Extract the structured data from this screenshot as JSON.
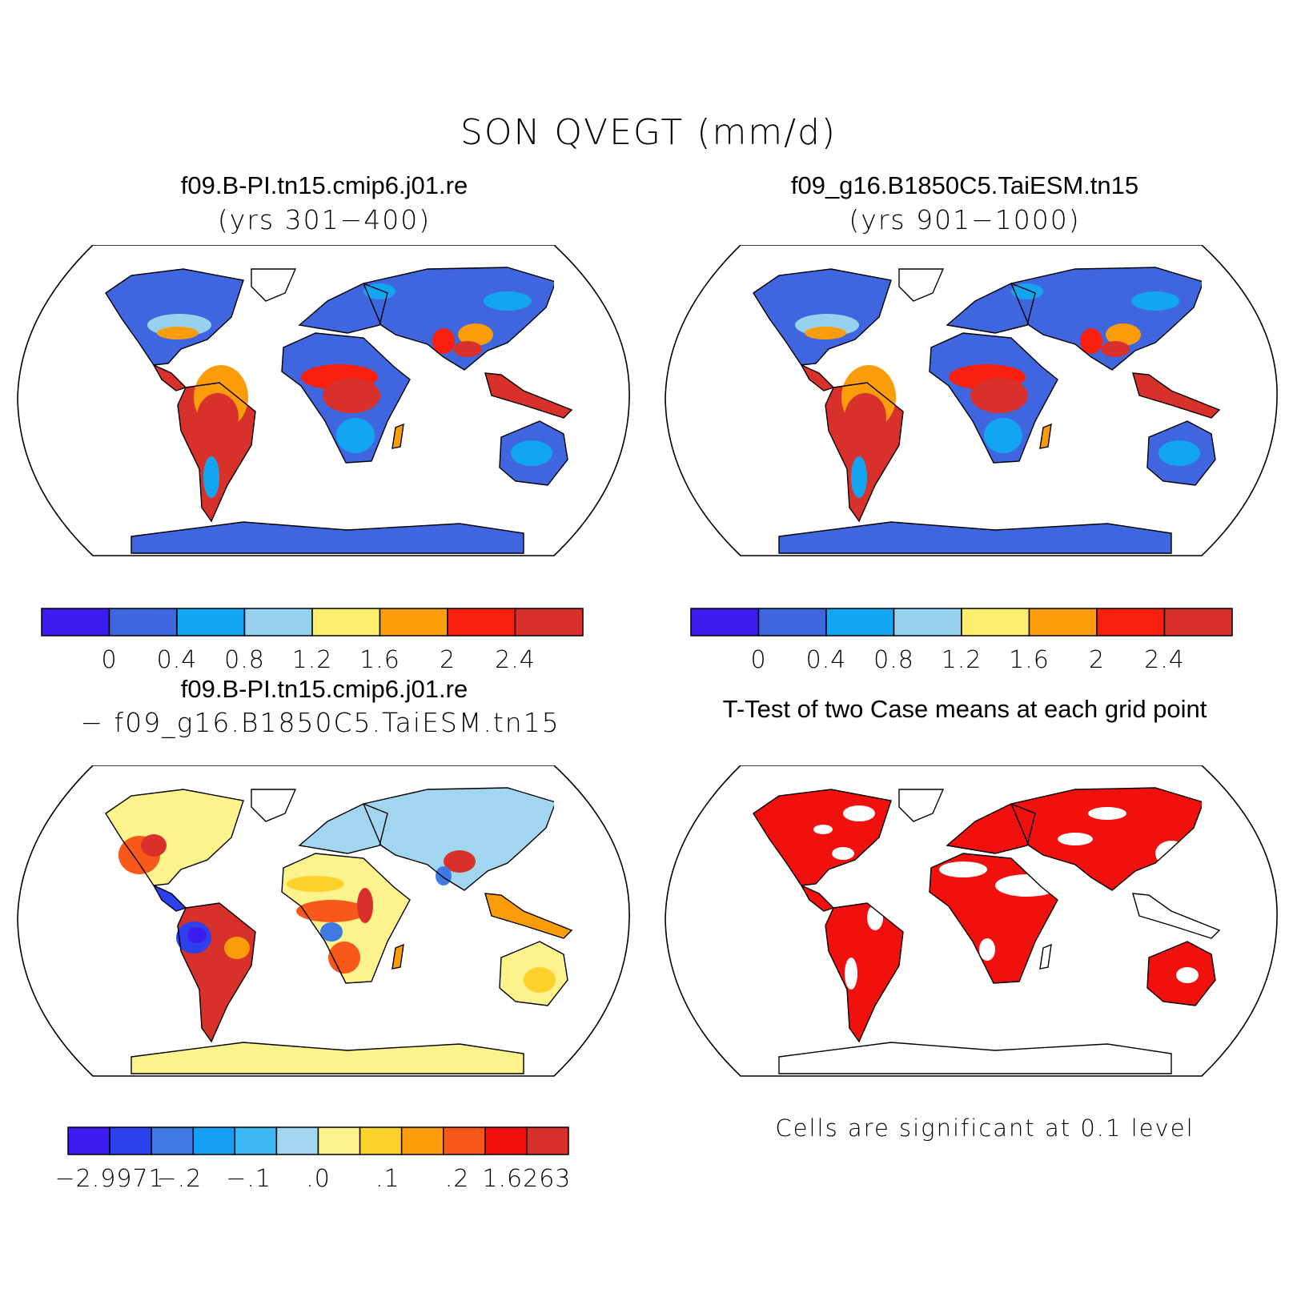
{
  "figure": {
    "title": "SON QVEGT (mm/d)"
  },
  "panels": [
    {
      "title": "f09.B-PI.tn15.cmip6.j01.re",
      "subtitle": "(yrs 301−400)",
      "colorbar": {
        "colors": [
          "#3d1cf2",
          "#3f66de",
          "#13a5f2",
          "#96d2ee",
          "#fbee6c",
          "#fb9d0b",
          "#f8200d",
          "#d8302b"
        ],
        "labels": [
          "0",
          "0.4",
          "0.8",
          "1.2",
          "1.6",
          "2",
          "2.4"
        ]
      }
    },
    {
      "title": "f09_g16.B1850C5.TaiESM.tn15",
      "subtitle": "(yrs 901−1000)",
      "colorbar": {
        "colors": [
          "#3d1cf2",
          "#3f66de",
          "#13a5f2",
          "#96d2ee",
          "#fbee6c",
          "#fb9d0b",
          "#f8200d",
          "#d8302b"
        ],
        "labels": [
          "0",
          "0.4",
          "0.8",
          "1.2",
          "1.6",
          "2",
          "2.4"
        ]
      }
    },
    {
      "title": "f09.B-PI.tn15.cmip6.j01.re",
      "subtitle": "− f09_g16.B1850C5.TaiESM.tn15",
      "colorbar": {
        "colors": [
          "#3d1cf2",
          "#2c40ee",
          "#3f7ae2",
          "#149ff4",
          "#3eb8f2",
          "#a2d5ef",
          "#fdf38c",
          "#fcd12a",
          "#fb9d0b",
          "#f8581a",
          "#f0100e",
          "#d8302b"
        ],
        "labels": [
          "−2.9971",
          "−.2",
          "−.1",
          ".0",
          ".1",
          ".2",
          "1.6263"
        ]
      }
    },
    {
      "title": "T-Test of two Case means at each grid point",
      "note": "Cells are significant at 0.1 level"
    }
  ]
}
